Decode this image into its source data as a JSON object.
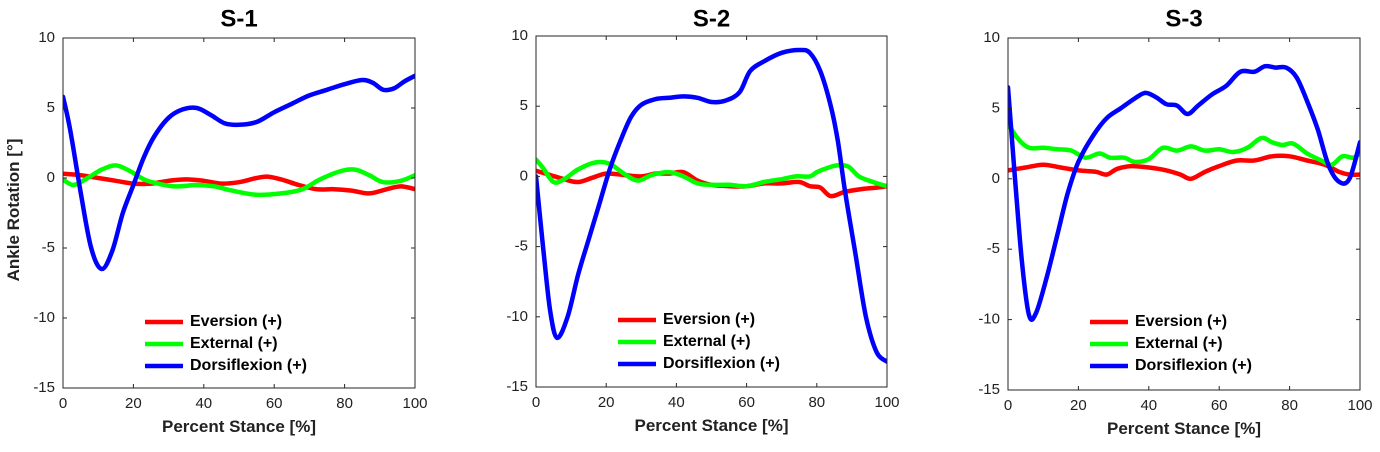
{
  "figure": {
    "ylabel": "Ankle Rotation [°]",
    "xlabel": "Percent Stance [%]"
  },
  "chart_data": [
    {
      "type": "line",
      "title": "S-1",
      "xlabel": "Percent Stance [%]",
      "ylabel": "Ankle Rotation [°]",
      "xlim": [
        0,
        100
      ],
      "ylim": [
        -15,
        10
      ],
      "xticks": [
        0,
        20,
        40,
        60,
        80,
        100
      ],
      "yticks": [
        -15,
        -10,
        -5,
        0,
        5,
        10
      ],
      "legend_position": "bottom-center",
      "series": [
        {
          "name": "Eversion (+)",
          "color": "#ff0000",
          "points": [
            [
              0,
              0.3
            ],
            [
              5,
              0.2
            ],
            [
              10,
              0.0
            ],
            [
              15,
              -0.2
            ],
            [
              20,
              -0.4
            ],
            [
              25,
              -0.4
            ],
            [
              30,
              -0.2
            ],
            [
              35,
              -0.1
            ],
            [
              40,
              -0.2
            ],
            [
              45,
              -0.4
            ],
            [
              50,
              -0.3
            ],
            [
              55,
              0.0
            ],
            [
              58,
              0.1
            ],
            [
              62,
              -0.1
            ],
            [
              67,
              -0.5
            ],
            [
              72,
              -0.8
            ],
            [
              77,
              -0.8
            ],
            [
              82,
              -0.9
            ],
            [
              87,
              -1.1
            ],
            [
              92,
              -0.8
            ],
            [
              96,
              -0.6
            ],
            [
              100,
              -0.8
            ]
          ]
        },
        {
          "name": "External (+)",
          "color": "#00ff00",
          "points": [
            [
              0,
              -0.1
            ],
            [
              3,
              -0.5
            ],
            [
              7,
              0.0
            ],
            [
              11,
              0.6
            ],
            [
              15,
              0.9
            ],
            [
              19,
              0.5
            ],
            [
              23,
              -0.1
            ],
            [
              27,
              -0.4
            ],
            [
              32,
              -0.6
            ],
            [
              38,
              -0.5
            ],
            [
              43,
              -0.6
            ],
            [
              48,
              -0.9
            ],
            [
              55,
              -1.2
            ],
            [
              62,
              -1.1
            ],
            [
              68,
              -0.8
            ],
            [
              73,
              -0.1
            ],
            [
              79,
              0.5
            ],
            [
              83,
              0.6
            ],
            [
              87,
              0.2
            ],
            [
              91,
              -0.3
            ],
            [
              96,
              -0.2
            ],
            [
              100,
              0.2
            ]
          ]
        },
        {
          "name": "Dorsiflexion (+)",
          "color": "#0000ff",
          "points": [
            [
              0,
              5.8
            ],
            [
              2,
              3.5
            ],
            [
              5,
              -1.0
            ],
            [
              8,
              -5.0
            ],
            [
              11,
              -6.5
            ],
            [
              14,
              -5.2
            ],
            [
              17,
              -2.5
            ],
            [
              20,
              -0.5
            ],
            [
              23,
              1.5
            ],
            [
              26,
              3.0
            ],
            [
              30,
              4.3
            ],
            [
              34,
              4.9
            ],
            [
              38,
              5.0
            ],
            [
              42,
              4.5
            ],
            [
              46,
              3.9
            ],
            [
              50,
              3.8
            ],
            [
              55,
              4.0
            ],
            [
              60,
              4.7
            ],
            [
              65,
              5.3
            ],
            [
              70,
              5.9
            ],
            [
              75,
              6.3
            ],
            [
              80,
              6.7
            ],
            [
              85,
              7.0
            ],
            [
              88,
              6.8
            ],
            [
              91,
              6.3
            ],
            [
              94,
              6.4
            ],
            [
              97,
              6.9
            ],
            [
              100,
              7.3
            ]
          ]
        }
      ]
    },
    {
      "type": "line",
      "title": "S-2",
      "xlabel": "Percent Stance [%]",
      "ylabel": "",
      "xlim": [
        0,
        100
      ],
      "ylim": [
        -15,
        10
      ],
      "xticks": [
        0,
        20,
        40,
        60,
        80,
        100
      ],
      "yticks": [
        -15,
        -10,
        -5,
        0,
        5,
        10
      ],
      "legend_position": "bottom-center",
      "series": [
        {
          "name": "Eversion (+)",
          "color": "#ff0000",
          "points": [
            [
              0,
              0.4
            ],
            [
              4,
              0.1
            ],
            [
              8,
              -0.2
            ],
            [
              12,
              -0.4
            ],
            [
              16,
              -0.1
            ],
            [
              20,
              0.2
            ],
            [
              25,
              0.1
            ],
            [
              30,
              0.0
            ],
            [
              34,
              0.2
            ],
            [
              38,
              0.2
            ],
            [
              42,
              0.3
            ],
            [
              46,
              -0.3
            ],
            [
              50,
              -0.6
            ],
            [
              55,
              -0.7
            ],
            [
              60,
              -0.7
            ],
            [
              65,
              -0.5
            ],
            [
              70,
              -0.5
            ],
            [
              75,
              -0.4
            ],
            [
              78,
              -0.7
            ],
            [
              81,
              -0.8
            ],
            [
              84,
              -1.4
            ],
            [
              88,
              -1.1
            ],
            [
              93,
              -0.9
            ],
            [
              97,
              -0.8
            ],
            [
              100,
              -0.7
            ]
          ]
        },
        {
          "name": "External (+)",
          "color": "#00ff00",
          "points": [
            [
              0,
              1.2
            ],
            [
              2,
              0.6
            ],
            [
              5,
              -0.4
            ],
            [
              8,
              -0.2
            ],
            [
              12,
              0.5
            ],
            [
              17,
              1.0
            ],
            [
              21,
              0.9
            ],
            [
              25,
              0.2
            ],
            [
              29,
              -0.3
            ],
            [
              33,
              0.1
            ],
            [
              38,
              0.3
            ],
            [
              42,
              0.0
            ],
            [
              46,
              -0.5
            ],
            [
              50,
              -0.6
            ],
            [
              55,
              -0.6
            ],
            [
              60,
              -0.7
            ],
            [
              65,
              -0.4
            ],
            [
              70,
              -0.2
            ],
            [
              74,
              0.0
            ],
            [
              78,
              0.0
            ],
            [
              80,
              0.3
            ],
            [
              83,
              0.6
            ],
            [
              86,
              0.8
            ],
            [
              89,
              0.7
            ],
            [
              92,
              0.0
            ],
            [
              96,
              -0.4
            ],
            [
              100,
              -0.7
            ]
          ]
        },
        {
          "name": "Dorsiflexion (+)",
          "color": "#0000ff",
          "points": [
            [
              0,
              0.0
            ],
            [
              2,
              -5.0
            ],
            [
              4,
              -9.5
            ],
            [
              6,
              -11.5
            ],
            [
              9,
              -10.0
            ],
            [
              12,
              -7.0
            ],
            [
              15,
              -4.5
            ],
            [
              18,
              -2.0
            ],
            [
              21,
              0.5
            ],
            [
              24,
              2.5
            ],
            [
              27,
              4.2
            ],
            [
              30,
              5.1
            ],
            [
              34,
              5.5
            ],
            [
              38,
              5.6
            ],
            [
              42,
              5.7
            ],
            [
              46,
              5.6
            ],
            [
              50,
              5.3
            ],
            [
              54,
              5.4
            ],
            [
              58,
              6.0
            ],
            [
              61,
              7.5
            ],
            [
              65,
              8.2
            ],
            [
              70,
              8.8
            ],
            [
              75,
              9.0
            ],
            [
              78,
              8.8
            ],
            [
              81,
              7.5
            ],
            [
              84,
              5.0
            ],
            [
              86,
              2.5
            ],
            [
              88,
              -1.0
            ],
            [
              91,
              -5.5
            ],
            [
              94,
              -10.0
            ],
            [
              97,
              -12.5
            ],
            [
              100,
              -13.2
            ]
          ]
        }
      ]
    },
    {
      "type": "line",
      "title": "S-3",
      "xlabel": "Percent Stance [%]",
      "ylabel": "",
      "xlim": [
        0,
        100
      ],
      "ylim": [
        -15,
        10
      ],
      "xticks": [
        0,
        20,
        40,
        60,
        80,
        100
      ],
      "yticks": [
        -15,
        -10,
        -5,
        0,
        5,
        10
      ],
      "legend_position": "bottom-center",
      "series": [
        {
          "name": "Eversion (+)",
          "color": "#ff0000",
          "points": [
            [
              0,
              0.6
            ],
            [
              5,
              0.8
            ],
            [
              10,
              1.0
            ],
            [
              15,
              0.8
            ],
            [
              20,
              0.6
            ],
            [
              25,
              0.5
            ],
            [
              28,
              0.3
            ],
            [
              31,
              0.7
            ],
            [
              35,
              0.9
            ],
            [
              40,
              0.8
            ],
            [
              45,
              0.6
            ],
            [
              49,
              0.3
            ],
            [
              52,
              0.0
            ],
            [
              56,
              0.5
            ],
            [
              60,
              0.9
            ],
            [
              65,
              1.3
            ],
            [
              70,
              1.3
            ],
            [
              75,
              1.6
            ],
            [
              80,
              1.6
            ],
            [
              85,
              1.3
            ],
            [
              90,
              1.0
            ],
            [
              94,
              0.5
            ],
            [
              97,
              0.3
            ],
            [
              100,
              0.3
            ]
          ]
        },
        {
          "name": "External (+)",
          "color": "#00ff00",
          "points": [
            [
              0,
              3.9
            ],
            [
              3,
              2.8
            ],
            [
              6,
              2.2
            ],
            [
              10,
              2.2
            ],
            [
              14,
              2.1
            ],
            [
              18,
              2.0
            ],
            [
              22,
              1.5
            ],
            [
              26,
              1.8
            ],
            [
              29,
              1.5
            ],
            [
              33,
              1.5
            ],
            [
              36,
              1.2
            ],
            [
              40,
              1.4
            ],
            [
              44,
              2.2
            ],
            [
              48,
              2.0
            ],
            [
              52,
              2.3
            ],
            [
              56,
              2.0
            ],
            [
              60,
              2.1
            ],
            [
              64,
              1.9
            ],
            [
              68,
              2.2
            ],
            [
              72,
              2.9
            ],
            [
              75,
              2.6
            ],
            [
              78,
              2.4
            ],
            [
              81,
              2.5
            ],
            [
              85,
              1.8
            ],
            [
              89,
              1.3
            ],
            [
              92,
              1.0
            ],
            [
              95,
              1.6
            ],
            [
              98,
              1.5
            ],
            [
              100,
              1.8
            ]
          ]
        },
        {
          "name": "Dorsiflexion (+)",
          "color": "#0000ff",
          "points": [
            [
              0,
              6.5
            ],
            [
              2,
              0.0
            ],
            [
              4,
              -6.0
            ],
            [
              6,
              -9.7
            ],
            [
              8,
              -9.5
            ],
            [
              11,
              -7.0
            ],
            [
              14,
              -4.0
            ],
            [
              17,
              -1.0
            ],
            [
              20,
              1.2
            ],
            [
              24,
              3.0
            ],
            [
              28,
              4.3
            ],
            [
              32,
              5.0
            ],
            [
              36,
              5.7
            ],
            [
              39,
              6.1
            ],
            [
              42,
              5.8
            ],
            [
              45,
              5.3
            ],
            [
              48,
              5.2
            ],
            [
              51,
              4.6
            ],
            [
              54,
              5.2
            ],
            [
              58,
              6.0
            ],
            [
              62,
              6.6
            ],
            [
              66,
              7.6
            ],
            [
              70,
              7.6
            ],
            [
              73,
              8.0
            ],
            [
              76,
              7.9
            ],
            [
              79,
              7.9
            ],
            [
              82,
              7.2
            ],
            [
              85,
              5.5
            ],
            [
              88,
              3.5
            ],
            [
              91,
              1.0
            ],
            [
              94,
              -0.2
            ],
            [
              97,
              0.0
            ],
            [
              100,
              2.6
            ]
          ]
        }
      ]
    }
  ]
}
